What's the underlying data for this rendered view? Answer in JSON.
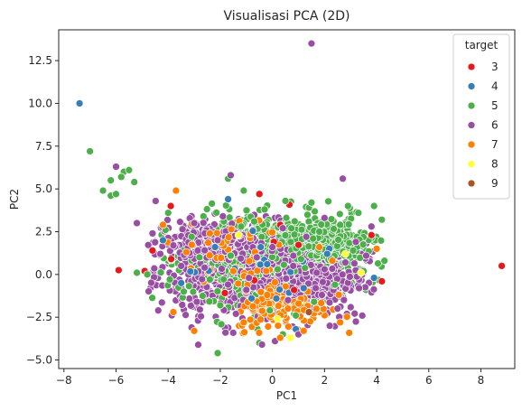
{
  "chart_data": {
    "type": "scatter",
    "title": "Visualisasi PCA (2D)",
    "xlabel": "PC1",
    "ylabel": "PC2",
    "xlim": [
      -8.2,
      9.3
    ],
    "ylim": [
      -5.5,
      14.3
    ],
    "xticks": [
      -8,
      -6,
      -4,
      -2,
      0,
      2,
      4,
      6,
      8
    ],
    "yticks": [
      -5.0,
      -2.5,
      0.0,
      2.5,
      5.0,
      7.5,
      10.0,
      12.5
    ],
    "ytick_labels": [
      "−5.0",
      "−2.5",
      "0.0",
      "2.5",
      "5.0",
      "7.5",
      "10.0",
      "12.5"
    ],
    "xtick_labels": [
      "−8",
      "−6",
      "−4",
      "−2",
      "0",
      "2",
      "4",
      "6",
      "8"
    ],
    "legend": {
      "title": "target",
      "position": "top-right",
      "entries": [
        "3",
        "4",
        "5",
        "6",
        "7",
        "8",
        "9"
      ]
    },
    "colors": {
      "3": "#e41a1c",
      "4": "#377eb8",
      "5": "#4daf4a",
      "6": "#984ea3",
      "7": "#ff7f00",
      "8": "#ffff33",
      "9": "#a65628"
    },
    "series": [
      {
        "name": "3",
        "points": [
          [
            8.8,
            0.5
          ],
          [
            -5.9,
            0.25
          ],
          [
            -4.9,
            0.2
          ],
          [
            -4.6,
            1.4
          ],
          [
            4.2,
            -0.4
          ],
          [
            -0.5,
            4.7
          ],
          [
            3.8,
            2.3
          ],
          [
            0.3,
            2.9
          ],
          [
            -3.9,
            4.0
          ]
        ]
      },
      {
        "name": "4",
        "points": [
          [
            -7.4,
            10.0
          ],
          [
            -1.7,
            4.4
          ],
          [
            3.9,
            -0.2
          ],
          [
            -3.5,
            -0.5
          ],
          [
            2.1,
            1.2
          ],
          [
            -2.2,
            1.6
          ],
          [
            -0.2,
            0.6
          ],
          [
            1.2,
            -0.8
          ],
          [
            -4.2,
            2.0
          ],
          [
            -0.8,
            -1.4
          ],
          [
            0.9,
            -3.2
          ]
        ]
      },
      {
        "name": "5",
        "points": [
          [
            -7.0,
            7.2
          ],
          [
            -6.2,
            4.6
          ],
          [
            -6.0,
            4.7
          ],
          [
            -6.5,
            4.9
          ],
          [
            -5.7,
            6.0
          ],
          [
            -5.5,
            6.1
          ],
          [
            -5.3,
            5.4
          ],
          [
            -6.2,
            5.5
          ],
          [
            -5.8,
            5.7
          ],
          [
            -5.2,
            0.1
          ],
          [
            -4.8,
            0.0
          ],
          [
            -2.1,
            -4.6
          ],
          [
            4.2,
            3.2
          ],
          [
            3.9,
            4.0
          ],
          [
            1.4,
            3.9
          ],
          [
            1.5,
            4.2
          ],
          [
            -1.7,
            5.6
          ],
          [
            -1.1,
            4.9
          ],
          [
            0.5,
            4.3
          ],
          [
            -0.3,
            3.8
          ],
          [
            4.3,
            0.8
          ],
          [
            3.3,
            3.6
          ],
          [
            -4.0,
            3.6
          ],
          [
            2.9,
            4.0
          ],
          [
            -3.4,
            -1.0
          ],
          [
            -0.5,
            -4.0
          ],
          [
            0.4,
            -3.5
          ],
          [
            1.8,
            2.5
          ],
          [
            -1.2,
            2.8
          ],
          [
            2.4,
            -0.6
          ],
          [
            -2.8,
            1.0
          ],
          [
            0.7,
            1.9
          ],
          [
            -0.1,
            -2.1
          ],
          [
            1.6,
            -1.6
          ],
          [
            -2.4,
            -0.3
          ],
          [
            3.1,
            1.4
          ],
          [
            -3.1,
            2.2
          ],
          [
            0.2,
            0.3
          ],
          [
            1.1,
            0.9
          ],
          [
            -1.6,
            1.1
          ],
          [
            2.6,
            2.9
          ],
          [
            -0.7,
            3.1
          ],
          [
            -4.1,
            2.6
          ],
          [
            3.5,
            0.2
          ],
          [
            -2.0,
            -1.8
          ],
          [
            0.9,
            -2.4
          ]
        ]
      },
      {
        "name": "6",
        "points": [
          [
            1.5,
            13.5
          ],
          [
            -6.0,
            6.3
          ],
          [
            2.7,
            5.6
          ],
          [
            -1.6,
            5.8
          ],
          [
            -5.2,
            3.0
          ],
          [
            -3.1,
            -3.1
          ],
          [
            -1.8,
            -3.4
          ],
          [
            0.1,
            -3.9
          ],
          [
            -0.4,
            -4.1
          ],
          [
            2.2,
            -3.0
          ],
          [
            -4.6,
            2.4
          ],
          [
            -3.8,
            1.7
          ],
          [
            3.2,
            1.9
          ],
          [
            1.9,
            -1.2
          ],
          [
            -2.6,
            0.4
          ],
          [
            -1.0,
            -0.9
          ],
          [
            0.6,
            -1.5
          ],
          [
            1.3,
            2.2
          ],
          [
            -2.1,
            2.0
          ],
          [
            2.8,
            0.7
          ],
          [
            -3.5,
            0.5
          ],
          [
            0.0,
            1.6
          ],
          [
            -1.4,
            -2.3
          ],
          [
            1.0,
            -3.5
          ],
          [
            2.5,
            -2.0
          ],
          [
            -0.6,
            1.0
          ],
          [
            3.6,
            1.1
          ],
          [
            -2.9,
            -1.6
          ],
          [
            0.4,
            2.7
          ],
          [
            -4.3,
            1.2
          ],
          [
            2.0,
            3.3
          ],
          [
            -1.9,
            3.4
          ],
          [
            1.7,
            0.1
          ],
          [
            -0.9,
            -0.2
          ],
          [
            0.8,
            0.5
          ],
          [
            -3.0,
            3.0
          ],
          [
            3.8,
            2.8
          ]
        ]
      },
      {
        "name": "7",
        "points": [
          [
            -3.7,
            4.9
          ],
          [
            -4.2,
            2.9
          ],
          [
            -3.8,
            -2.2
          ],
          [
            -3.0,
            -3.3
          ],
          [
            2.6,
            -2.8
          ],
          [
            1.2,
            -3.3
          ],
          [
            0.3,
            -3.7
          ],
          [
            -1.1,
            -2.8
          ],
          [
            4.0,
            1.5
          ],
          [
            -2.4,
            2.4
          ],
          [
            -0.2,
            -1.2
          ],
          [
            1.8,
            1.6
          ],
          [
            -1.5,
            0.2
          ],
          [
            0.6,
            -2.0
          ],
          [
            -3.3,
            1.3
          ],
          [
            2.3,
            0.8
          ]
        ]
      },
      {
        "name": "8",
        "points": [
          [
            0.7,
            -3.7
          ],
          [
            3.4,
            0.1
          ],
          [
            -1.3,
            2.3
          ],
          [
            2.8,
            1.2
          ],
          [
            0.2,
            -2.6
          ]
        ]
      },
      {
        "name": "9",
        "points": [
          [
            1.4,
            -2.2
          ]
        ]
      }
    ]
  }
}
